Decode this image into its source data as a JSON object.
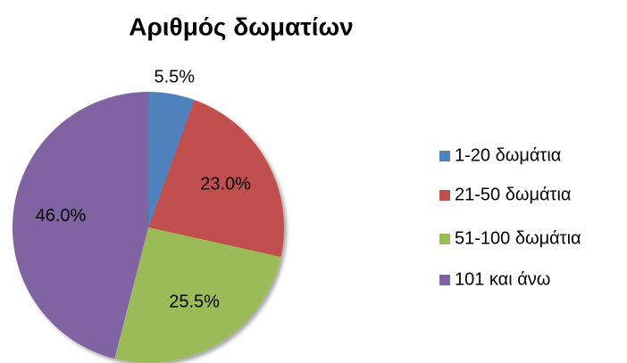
{
  "chart_data": {
    "type": "pie",
    "title": "Αριθμός δωματίων",
    "categories": [
      "1-20 δωμάτια",
      "21-50 δωμάτια",
      "51-100 δωμάτια",
      "101 και άνω"
    ],
    "values": [
      5.5,
      23.0,
      25.5,
      46.0
    ],
    "value_labels": [
      "5.5%",
      "23.0%",
      "25.5%",
      "46.0%"
    ],
    "colors": [
      "#4f81bd",
      "#c0504d",
      "#9bbb59",
      "#8064a2"
    ],
    "legend": "right"
  }
}
